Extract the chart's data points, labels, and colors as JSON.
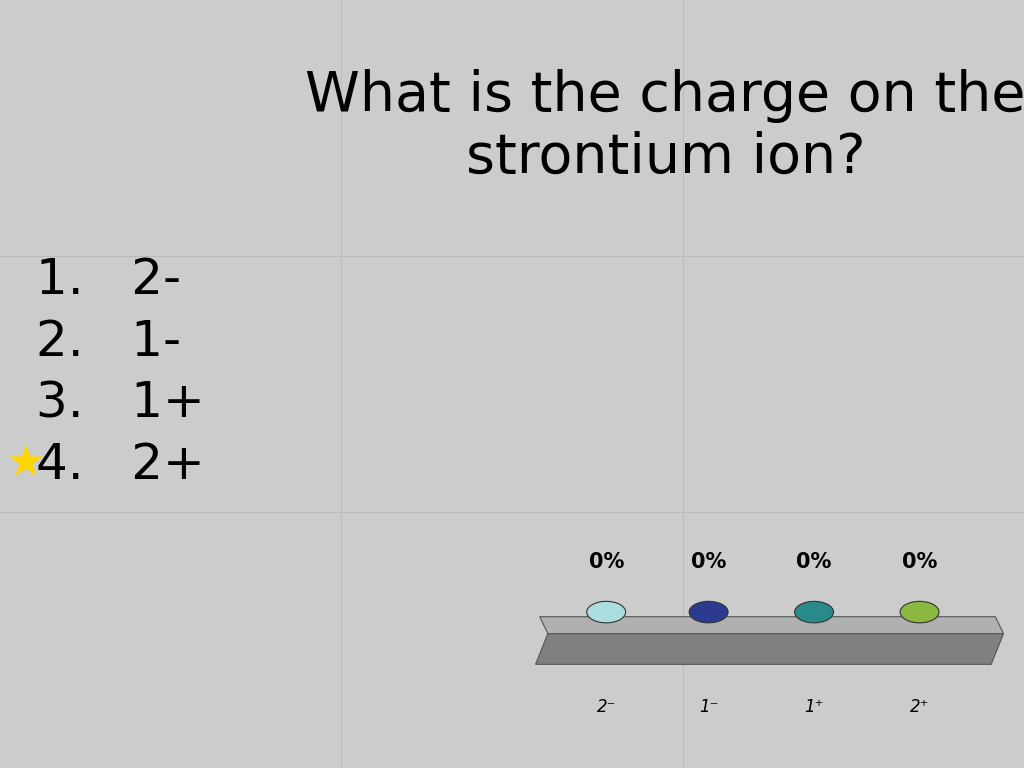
{
  "title_line1": "What is the charge on the",
  "title_line2": "strontium ion?",
  "title_fontsize": 40,
  "bg_color": "#cccccc",
  "grid_color": "#bbbbbb",
  "options": [
    "1.   2-",
    "2.   1-",
    "3.   1+",
    "4.   2+"
  ],
  "option_fontsize": 36,
  "answer_labels": [
    "2⁻",
    "1⁻",
    "1⁺",
    "2⁺"
  ],
  "pct_labels": [
    "0%",
    "0%",
    "0%",
    "0%"
  ],
  "blob_colors": [
    "#aadde0",
    "#2b3a8f",
    "#2a8a8a",
    "#8ab840"
  ],
  "platform_dark": "#808080",
  "platform_mid": "#999999",
  "platform_light": "#b0b0b0",
  "grid_vlines": [
    0.3333,
    0.6667
  ],
  "grid_hlines": [
    0.3333,
    0.6667
  ]
}
